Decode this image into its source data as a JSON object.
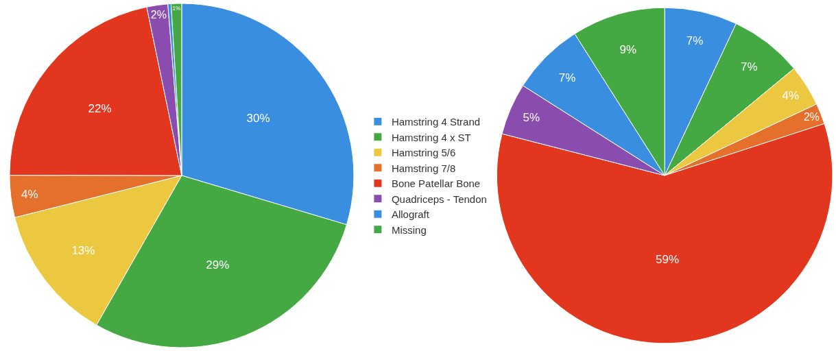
{
  "chart_data": [
    {
      "type": "pie",
      "categories": [
        "Hamstring 4 Strand",
        "Hamstring 4 x ST",
        "Hamstring 5/6",
        "Hamstring 7/8",
        "Bone Patellar Bone",
        "Quadriceps - Tendon",
        "Allograft",
        "Missing"
      ],
      "values": [
        30,
        29,
        13,
        4,
        22,
        2,
        0.3,
        1
      ],
      "value_labels": [
        "30%",
        "29%",
        "13%",
        "4%",
        "22%",
        "2%",
        null,
        "1%"
      ],
      "colors": [
        "#3a8ee0",
        "#44a843",
        "#ebc840",
        "#e4702c",
        "#e2361f",
        "#8a4cae",
        "#3a8ee0",
        "#44a843"
      ],
      "legend": "right"
    },
    {
      "type": "pie",
      "categories": [
        null,
        null,
        null,
        null,
        null,
        null,
        null,
        null
      ],
      "values": [
        7,
        7,
        4,
        2,
        59,
        5,
        7,
        9
      ],
      "value_labels": [
        "7%",
        "7%",
        "4%",
        "2%",
        "59%",
        "5%",
        "7%",
        "9%"
      ],
      "colors": [
        "#3a8ee0",
        "#44a843",
        "#ebc840",
        "#e4702c",
        "#e2361f",
        "#8a4cae",
        "#3a8ee0",
        "#44a843"
      ]
    }
  ]
}
